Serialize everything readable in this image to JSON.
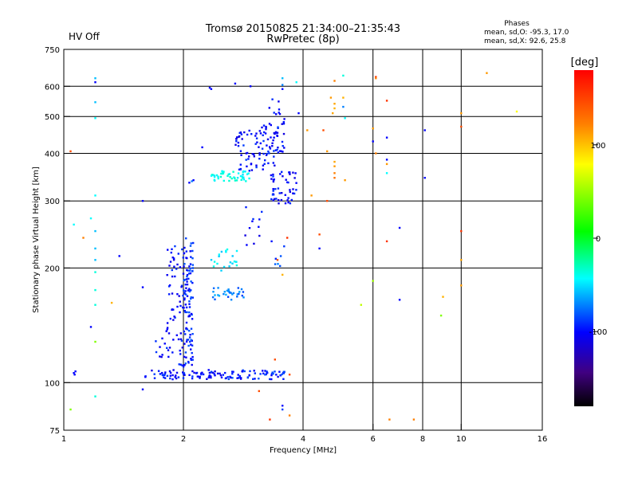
{
  "status": {
    "hv_label": "HV Off",
    "hv_color": "#cc0000"
  },
  "title": {
    "line1": "Tromsø 20150825 21:34:00–21:35:43",
    "line2": "RwPretec (8p)"
  },
  "phases": {
    "header": "Phases",
    "line_o": "mean, sd,O: -95.3, 17.0",
    "line_x": "mean, sd,X:  92.6, 25.8"
  },
  "colorbar": {
    "unit_label": "[deg]",
    "range": [
      -180,
      180
    ],
    "ticks": [
      {
        "value": 100,
        "label": "100"
      },
      {
        "value": 0,
        "label": "0"
      },
      {
        "value": -100,
        "label": "-100"
      }
    ]
  },
  "chart_data": {
    "type": "scatter",
    "xlabel": "Frequency [MHz]",
    "ylabel": "Stationary phase Virtual Height [km]",
    "xscale": "log",
    "yscale": "log",
    "xlim": [
      1,
      16
    ],
    "ylim": [
      75,
      750
    ],
    "x_ticks": [
      {
        "value": 1,
        "label": "1"
      },
      {
        "value": 2,
        "label": "2"
      },
      {
        "value": 4,
        "label": "4"
      },
      {
        "value": 6,
        "label": "6"
      },
      {
        "value": 8,
        "label": "8"
      },
      {
        "value": 10,
        "label": "10"
      },
      {
        "value": 16,
        "label": "16"
      }
    ],
    "x_gridlines": [
      2,
      4,
      6,
      8,
      10
    ],
    "y_ticks": [
      {
        "value": 75,
        "label": "75"
      },
      {
        "value": 100,
        "label": "100"
      },
      {
        "value": 200,
        "label": "200"
      },
      {
        "value": 300,
        "label": "300"
      },
      {
        "value": 400,
        "label": "400"
      },
      {
        "value": 500,
        "label": "500"
      },
      {
        "value": 600,
        "label": "600"
      },
      {
        "value": 750,
        "label": "750"
      }
    ],
    "y_gridlines": [
      100,
      200,
      300,
      400,
      500,
      600
    ],
    "color_variable": "phase (deg)",
    "clusters": [
      {
        "f": [
          1.6,
          2.55
        ],
        "h": [
          102,
          108
        ],
        "phase": -110,
        "n": 70
      },
      {
        "f": [
          2.55,
          3.6
        ],
        "h": [
          102,
          108
        ],
        "phase": -105,
        "n": 60
      },
      {
        "f": [
          1.7,
          1.85
        ],
        "h": [
          115,
          140
        ],
        "phase": -110,
        "n": 12
      },
      {
        "f": [
          1.82,
          2.0
        ],
        "h": [
          110,
          230
        ],
        "phase": -110,
        "n": 60
      },
      {
        "f": [
          2.0,
          2.12
        ],
        "h": [
          110,
          240
        ],
        "phase": -105,
        "n": 110
      },
      {
        "f": [
          2.35,
          2.85
        ],
        "h": [
          165,
          178
        ],
        "phase": -90,
        "n": 30
      },
      {
        "f": [
          2.35,
          2.75
        ],
        "h": [
          195,
          225
        ],
        "phase": -70,
        "n": 22
      },
      {
        "f": [
          2.35,
          2.95
        ],
        "h": [
          338,
          360
        ],
        "phase": -65,
        "n": 45
      },
      {
        "f": [
          2.7,
          3.2
        ],
        "h": [
          360,
          460
        ],
        "phase": -110,
        "n": 50
      },
      {
        "f": [
          3.05,
          3.55
        ],
        "h": [
          370,
          480
        ],
        "phase": -110,
        "n": 45
      },
      {
        "f": [
          3.3,
          3.85
        ],
        "h": [
          295,
          360
        ],
        "phase": -110,
        "n": 50
      },
      {
        "f": [
          3.25,
          3.6
        ],
        "h": [
          400,
          560
        ],
        "phase": -110,
        "n": 25
      },
      {
        "f": [
          2.85,
          3.4
        ],
        "h": [
          220,
          290
        ],
        "phase": -110,
        "n": 12
      },
      {
        "f": [
          3.4,
          3.6
        ],
        "h": [
          195,
          230
        ],
        "phase": -95,
        "n": 6
      }
    ],
    "points": [
      {
        "f": 1.06,
        "h": 106,
        "phase": -110
      },
      {
        "f": 1.07,
        "h": 107,
        "phase": -110
      },
      {
        "f": 1.065,
        "h": 105,
        "phase": -110
      },
      {
        "f": 1.2,
        "h": 630,
        "phase": -80
      },
      {
        "f": 1.2,
        "h": 615,
        "phase": -110
      },
      {
        "f": 1.2,
        "h": 545,
        "phase": -80
      },
      {
        "f": 1.2,
        "h": 495,
        "phase": -70
      },
      {
        "f": 1.2,
        "h": 310,
        "phase": -70
      },
      {
        "f": 1.17,
        "h": 270,
        "phase": -70
      },
      {
        "f": 1.2,
        "h": 250,
        "phase": -80
      },
      {
        "f": 1.2,
        "h": 225,
        "phase": -80
      },
      {
        "f": 1.2,
        "h": 210,
        "phase": -80
      },
      {
        "f": 1.2,
        "h": 195,
        "phase": -60
      },
      {
        "f": 1.2,
        "h": 175,
        "phase": -60
      },
      {
        "f": 1.2,
        "h": 160,
        "phase": -60
      },
      {
        "f": 1.2,
        "h": 128,
        "phase": 40
      },
      {
        "f": 1.2,
        "h": 92,
        "phase": -60
      },
      {
        "f": 1.17,
        "h": 140,
        "phase": -110
      },
      {
        "f": 1.12,
        "h": 240,
        "phase": 130
      },
      {
        "f": 1.06,
        "h": 260,
        "phase": -70
      },
      {
        "f": 1.04,
        "h": 405,
        "phase": 150
      },
      {
        "f": 1.04,
        "h": 85,
        "phase": 40
      },
      {
        "f": 1.38,
        "h": 215,
        "phase": -110
      },
      {
        "f": 1.32,
        "h": 162,
        "phase": 110
      },
      {
        "f": 1.58,
        "h": 300,
        "phase": -110
      },
      {
        "f": 1.58,
        "h": 178,
        "phase": -110
      },
      {
        "f": 1.58,
        "h": 96,
        "phase": -110
      },
      {
        "f": 2.07,
        "h": 335,
        "phase": -110
      },
      {
        "f": 2.1,
        "h": 338,
        "phase": -90
      },
      {
        "f": 2.12,
        "h": 340,
        "phase": -110
      },
      {
        "f": 2.23,
        "h": 415,
        "phase": -110
      },
      {
        "f": 2.33,
        "h": 595,
        "phase": -110
      },
      {
        "f": 2.35,
        "h": 590,
        "phase": -110
      },
      {
        "f": 2.7,
        "h": 610,
        "phase": -110
      },
      {
        "f": 2.95,
        "h": 600,
        "phase": -110
      },
      {
        "f": 3.55,
        "h": 630,
        "phase": -80
      },
      {
        "f": 3.55,
        "h": 605,
        "phase": -90
      },
      {
        "f": 3.55,
        "h": 590,
        "phase": -110
      },
      {
        "f": 3.85,
        "h": 615,
        "phase": -70
      },
      {
        "f": 3.9,
        "h": 510,
        "phase": -110
      },
      {
        "f": 3.1,
        "h": 95,
        "phase": 150
      },
      {
        "f": 3.3,
        "h": 80,
        "phase": 160
      },
      {
        "f": 3.55,
        "h": 87,
        "phase": -110
      },
      {
        "f": 3.55,
        "h": 85,
        "phase": -100
      },
      {
        "f": 3.7,
        "h": 82,
        "phase": 130
      },
      {
        "f": 3.4,
        "h": 115,
        "phase": 150
      },
      {
        "f": 3.65,
        "h": 240,
        "phase": 160
      },
      {
        "f": 3.55,
        "h": 192,
        "phase": 110
      },
      {
        "f": 3.45,
        "h": 210,
        "phase": 150
      },
      {
        "f": 3.7,
        "h": 105,
        "phase": 150
      },
      {
        "f": 4.1,
        "h": 460,
        "phase": 120
      },
      {
        "f": 4.2,
        "h": 310,
        "phase": 120
      },
      {
        "f": 4.4,
        "h": 245,
        "phase": 150
      },
      {
        "f": 4.4,
        "h": 225,
        "phase": -110
      },
      {
        "f": 4.5,
        "h": 460,
        "phase": 150
      },
      {
        "f": 4.6,
        "h": 405,
        "phase": 120
      },
      {
        "f": 4.6,
        "h": 300,
        "phase": 150
      },
      {
        "f": 4.8,
        "h": 620,
        "phase": 130
      },
      {
        "f": 4.7,
        "h": 560,
        "phase": 120
      },
      {
        "f": 4.8,
        "h": 540,
        "phase": 115
      },
      {
        "f": 4.8,
        "h": 525,
        "phase": 110
      },
      {
        "f": 4.75,
        "h": 510,
        "phase": 115
      },
      {
        "f": 4.8,
        "h": 380,
        "phase": 115
      },
      {
        "f": 4.8,
        "h": 370,
        "phase": 120
      },
      {
        "f": 4.8,
        "h": 355,
        "phase": 130
      },
      {
        "f": 4.8,
        "h": 345,
        "phase": 135
      },
      {
        "f": 5.05,
        "h": 640,
        "phase": -60
      },
      {
        "f": 5.05,
        "h": 560,
        "phase": 110
      },
      {
        "f": 5.05,
        "h": 530,
        "phase": -90
      },
      {
        "f": 5.1,
        "h": 495,
        "phase": -70
      },
      {
        "f": 5.1,
        "h": 340,
        "phase": 120
      },
      {
        "f": 5.6,
        "h": 160,
        "phase": 60
      },
      {
        "f": 6.1,
        "h": 635,
        "phase": 160
      },
      {
        "f": 6.1,
        "h": 630,
        "phase": 130
      },
      {
        "f": 6.0,
        "h": 465,
        "phase": 120
      },
      {
        "f": 6.0,
        "h": 430,
        "phase": -110
      },
      {
        "f": 6.1,
        "h": 400,
        "phase": 130
      },
      {
        "f": 6.0,
        "h": 185,
        "phase": 50
      },
      {
        "f": 6.5,
        "h": 550,
        "phase": 160
      },
      {
        "f": 6.5,
        "h": 440,
        "phase": -110
      },
      {
        "f": 6.5,
        "h": 385,
        "phase": -110
      },
      {
        "f": 6.5,
        "h": 375,
        "phase": 120
      },
      {
        "f": 6.5,
        "h": 355,
        "phase": -70
      },
      {
        "f": 6.5,
        "h": 235,
        "phase": 160
      },
      {
        "f": 6.6,
        "h": 80,
        "phase": 130
      },
      {
        "f": 7.0,
        "h": 255,
        "phase": -110
      },
      {
        "f": 7.0,
        "h": 165,
        "phase": -110
      },
      {
        "f": 7.6,
        "h": 80,
        "phase": 130
      },
      {
        "f": 8.1,
        "h": 460,
        "phase": -110
      },
      {
        "f": 8.1,
        "h": 345,
        "phase": -110
      },
      {
        "f": 9.0,
        "h": 168,
        "phase": 110
      },
      {
        "f": 8.9,
        "h": 150,
        "phase": 40
      },
      {
        "f": 10.0,
        "h": 510,
        "phase": 120
      },
      {
        "f": 10.0,
        "h": 470,
        "phase": 150
      },
      {
        "f": 10.0,
        "h": 250,
        "phase": 160
      },
      {
        "f": 10.0,
        "h": 210,
        "phase": 115
      },
      {
        "f": 10.0,
        "h": 180,
        "phase": 120
      },
      {
        "f": 11.6,
        "h": 650,
        "phase": 120
      },
      {
        "f": 13.8,
        "h": 515,
        "phase": 80
      }
    ]
  }
}
